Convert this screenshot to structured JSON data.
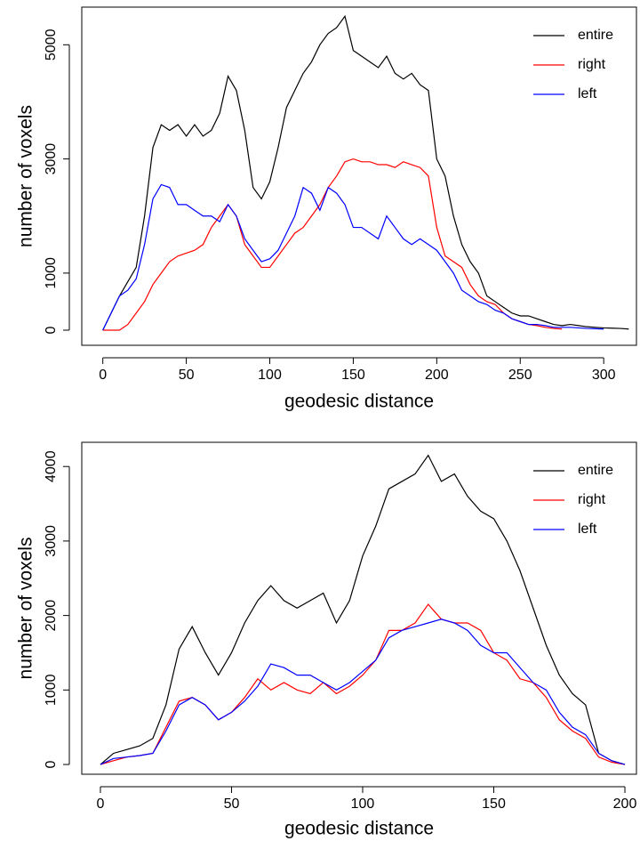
{
  "chart_data": [
    {
      "type": "line",
      "xlabel": "geodesic distance",
      "ylabel": "number of voxels",
      "x": [
        0,
        5,
        10,
        15,
        20,
        25,
        30,
        35,
        40,
        45,
        50,
        55,
        60,
        65,
        70,
        75,
        80,
        85,
        90,
        95,
        100,
        105,
        110,
        115,
        120,
        125,
        130,
        135,
        140,
        145,
        150,
        155,
        160,
        165,
        170,
        175,
        180,
        185,
        190,
        195,
        200,
        205,
        210,
        215,
        220,
        225,
        230,
        235,
        240,
        245,
        250,
        255,
        260,
        265,
        270,
        275,
        280,
        285,
        290,
        295,
        300,
        305,
        310,
        315
      ],
      "series": [
        {
          "name": "entire",
          "color": "#000000",
          "values": [
            0,
            300,
            600,
            850,
            1100,
            2000,
            3200,
            3600,
            3500,
            3600,
            3400,
            3600,
            3400,
            3500,
            3800,
            4450,
            4200,
            3500,
            2500,
            2300,
            2600,
            3200,
            3900,
            4200,
            4500,
            4700,
            5000,
            5200,
            5300,
            5500,
            4900,
            4800,
            4700,
            4600,
            4800,
            4500,
            4400,
            4500,
            4300,
            4200,
            3000,
            2700,
            2000,
            1500,
            1200,
            1000,
            600,
            500,
            400,
            300,
            250,
            250,
            200,
            150,
            100,
            80,
            100,
            80,
            60,
            50,
            40,
            35,
            30,
            20
          ]
        },
        {
          "name": "right",
          "color": "#ff0000",
          "values": [
            0,
            0,
            0,
            100,
            300,
            500,
            800,
            1000,
            1200,
            1300,
            1350,
            1400,
            1500,
            1800,
            2000,
            2200,
            2000,
            1500,
            1300,
            1100,
            1100,
            1300,
            1500,
            1700,
            1800,
            2000,
            2200,
            2500,
            2700,
            2950,
            3000,
            2950,
            2950,
            2900,
            2900,
            2850,
            2950,
            2900,
            2850,
            2700,
            1800,
            1300,
            1200,
            1100,
            800,
            600,
            500,
            450,
            300,
            200,
            150,
            100,
            80,
            50,
            30,
            20,
            null,
            null,
            null,
            null,
            null,
            null,
            null,
            null
          ]
        },
        {
          "name": "left",
          "color": "#0000ff",
          "values": [
            0,
            300,
            600,
            700,
            900,
            1500,
            2300,
            2550,
            2500,
            2200,
            2200,
            2100,
            2000,
            2000,
            1900,
            2200,
            2000,
            1600,
            1400,
            1200,
            1250,
            1400,
            1700,
            2000,
            2500,
            2400,
            2100,
            2500,
            2400,
            2200,
            1800,
            1800,
            1700,
            1600,
            2000,
            1800,
            1600,
            1500,
            1600,
            1500,
            1400,
            1200,
            1000,
            700,
            600,
            500,
            450,
            350,
            300,
            200,
            150,
            100,
            100,
            80,
            50,
            50,
            50,
            40,
            30,
            25,
            20,
            null,
            null,
            null
          ]
        }
      ],
      "xlim": [
        -12.6,
        319.6
      ],
      "ylim": [
        -265,
        5660
      ],
      "xticks": [
        0,
        50,
        100,
        150,
        200,
        250,
        300
      ],
      "yticks": [
        0,
        1000,
        3000,
        5000
      ],
      "legend": "top-right"
    },
    {
      "type": "line",
      "xlabel": "geodesic distance",
      "ylabel": "number of voxels",
      "x": [
        0,
        5,
        10,
        15,
        20,
        25,
        30,
        35,
        40,
        45,
        50,
        55,
        60,
        65,
        70,
        75,
        80,
        85,
        90,
        95,
        100,
        105,
        110,
        115,
        120,
        125,
        130,
        135,
        140,
        145,
        150,
        155,
        160,
        165,
        170,
        175,
        180,
        185,
        190,
        195,
        200
      ],
      "series": [
        {
          "name": "entire",
          "color": "#000000",
          "values": [
            0,
            150,
            200,
            250,
            350,
            800,
            1550,
            1850,
            1500,
            1200,
            1500,
            1900,
            2200,
            2400,
            2200,
            2100,
            2200,
            2300,
            1900,
            2200,
            2800,
            3200,
            3700,
            3800,
            3900,
            4150,
            3800,
            3900,
            3600,
            3400,
            3300,
            3000,
            2600,
            2100,
            1600,
            1200,
            950,
            800,
            150,
            50,
            0
          ]
        },
        {
          "name": "right",
          "color": "#ff0000",
          "values": [
            0,
            50,
            100,
            120,
            150,
            500,
            850,
            900,
            800,
            600,
            700,
            900,
            1150,
            1000,
            1100,
            1000,
            950,
            1100,
            950,
            1050,
            1200,
            1400,
            1800,
            1800,
            1900,
            2150,
            1950,
            1900,
            1900,
            1800,
            1500,
            1400,
            1150,
            1100,
            900,
            600,
            450,
            350,
            100,
            30,
            0
          ]
        },
        {
          "name": "left",
          "color": "#0000ff",
          "values": [
            0,
            80,
            100,
            120,
            150,
            450,
            800,
            900,
            800,
            600,
            700,
            850,
            1050,
            1350,
            1300,
            1200,
            1200,
            1100,
            1000,
            1100,
            1250,
            1400,
            1700,
            1800,
            1850,
            1900,
            1950,
            1900,
            1800,
            1600,
            1500,
            1500,
            1300,
            1100,
            1000,
            700,
            500,
            400,
            150,
            50,
            0
          ]
        }
      ],
      "xlim": [
        -7.1,
        204.4
      ],
      "ylim": [
        -131,
        4325
      ],
      "xticks": [
        0,
        50,
        100,
        150,
        200
      ],
      "yticks": [
        0,
        1000,
        2000,
        3000,
        4000
      ],
      "legend": "top-right"
    }
  ]
}
